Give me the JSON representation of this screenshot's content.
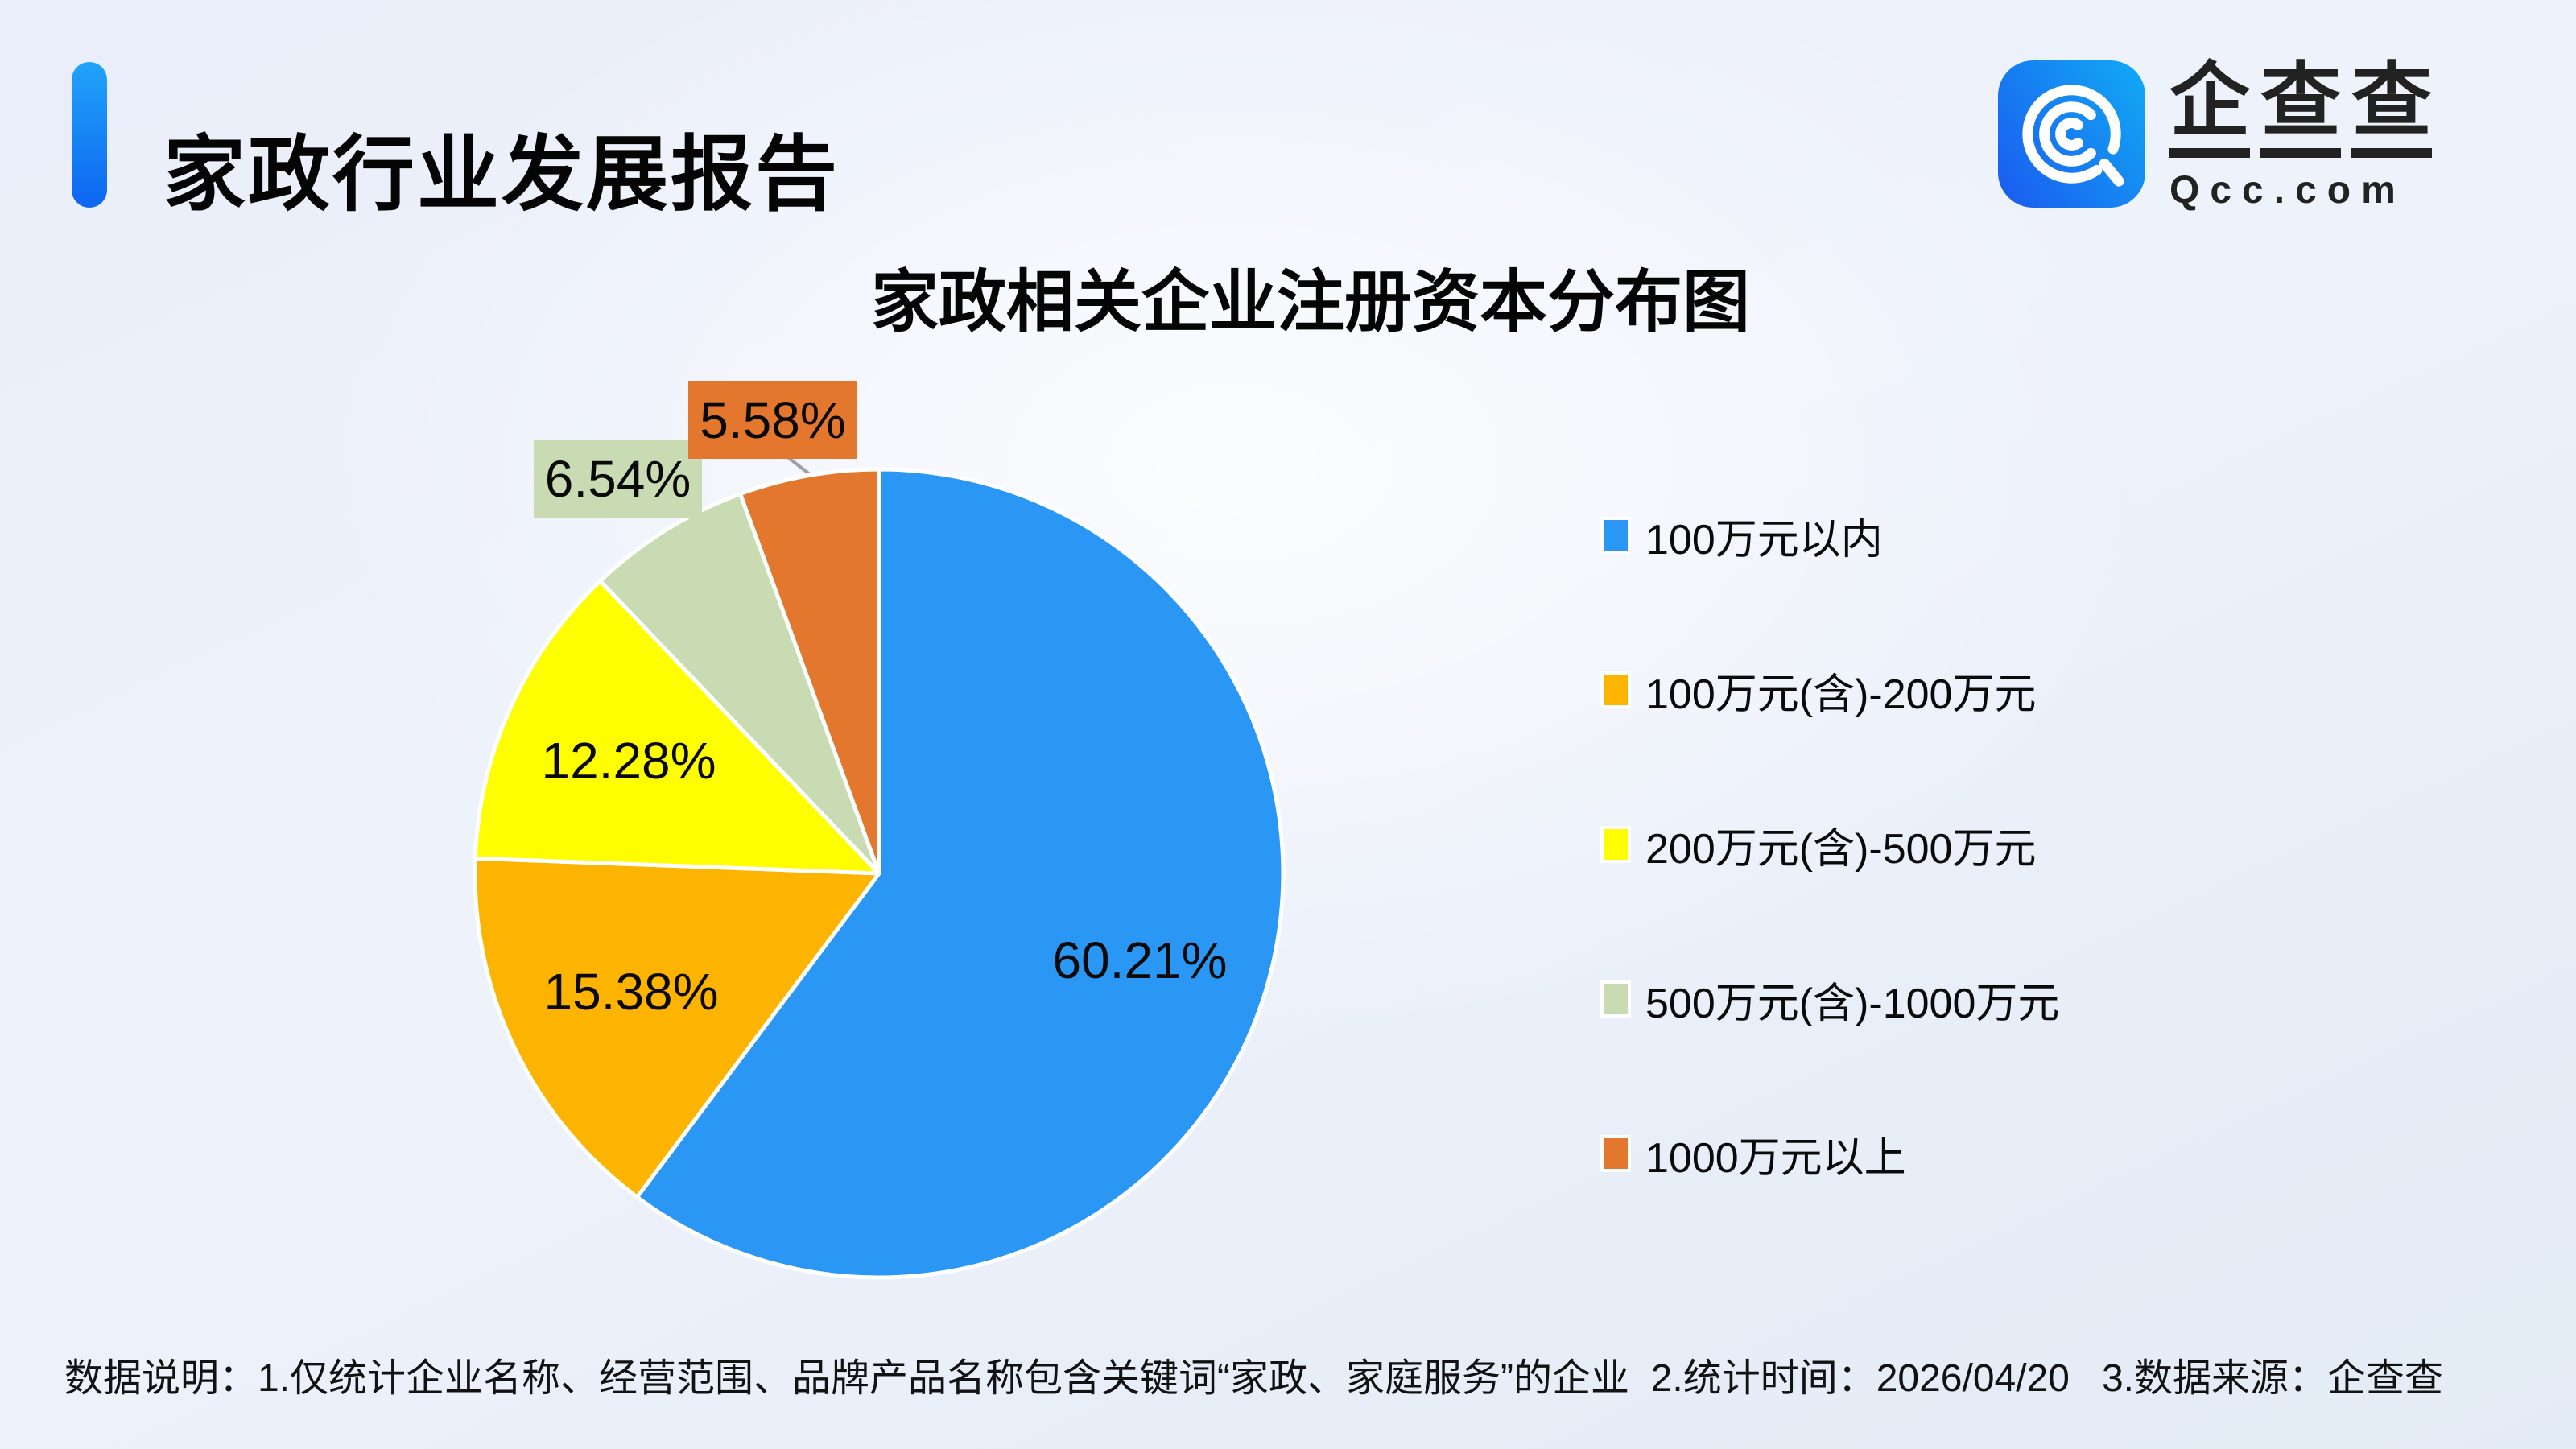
{
  "page": {
    "report_title": "家政行业发展报告",
    "logo": {
      "brand_cn": "企查查",
      "brand_en": "Qcc.com",
      "icon": "qcc-magnifier-logo-icon"
    },
    "footnote": "数据说明：1.仅统计企业名称、经营范围、品牌产品名称包含关键词“家政、家庭服务”的企业  2.统计时间：2026/04/20   3.数据来源：企查查",
    "accent_color": "#0d66f1",
    "background_color": "#ebf0f9"
  },
  "chart_data": {
    "type": "pie",
    "title": "家政相关企业注册资本分布图",
    "unit": "%",
    "start_angle": "12-oclock",
    "direction": "clockwise",
    "legend_position": "right",
    "slices": [
      {
        "label": "100万元以内",
        "value": 60.21,
        "display": "60.21%",
        "color": "#2A97F5",
        "label_placement": "inside"
      },
      {
        "label": "100万元(含)-200万元",
        "value": 15.38,
        "display": "15.38%",
        "color": "#FCB401",
        "label_placement": "inside"
      },
      {
        "label": "200万元(含)-500万元",
        "value": 12.28,
        "display": "12.28%",
        "color": "#FEFE00",
        "label_placement": "inside"
      },
      {
        "label": "500万元(含)-1000万元",
        "value": 6.54,
        "display": "6.54%",
        "color": "#C8DBB2",
        "label_placement": "outside-box"
      },
      {
        "label": "1000万元以上",
        "value": 5.58,
        "display": "5.58%",
        "color": "#E3772E",
        "label_placement": "outside-box-leader"
      }
    ]
  }
}
